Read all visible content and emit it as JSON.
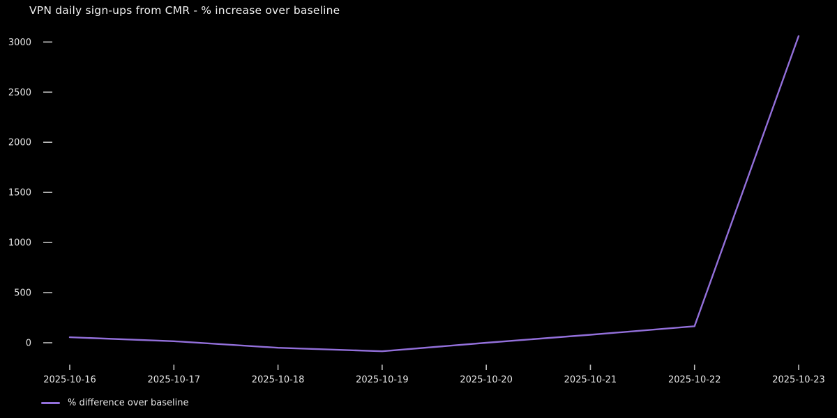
{
  "chart_data": {
    "type": "line",
    "title": "VPN daily sign-ups from CMR - % increase over baseline",
    "x": [
      "2025-10-16",
      "2025-10-17",
      "2025-10-18",
      "2025-10-19",
      "2025-10-20",
      "2025-10-21",
      "2025-10-22",
      "2025-10-23"
    ],
    "series": [
      {
        "name": "% difference over baseline",
        "color": "#9370db",
        "values": [
          55,
          15,
          -50,
          -85,
          0,
          80,
          165,
          3060
        ]
      }
    ],
    "xlabel": "",
    "ylabel": "",
    "yticks": [
      0,
      500,
      1000,
      1500,
      2000,
      2500,
      3000
    ],
    "ylim": [
      -230,
      3140
    ],
    "grid": false,
    "legend_position": "lower-left",
    "background": "#000000"
  },
  "legend": {
    "label": "% difference over baseline"
  },
  "colors": {
    "background": "#000000",
    "text": "#e6e6e6",
    "tick": "#c0c0c0",
    "line": "#9370db"
  }
}
